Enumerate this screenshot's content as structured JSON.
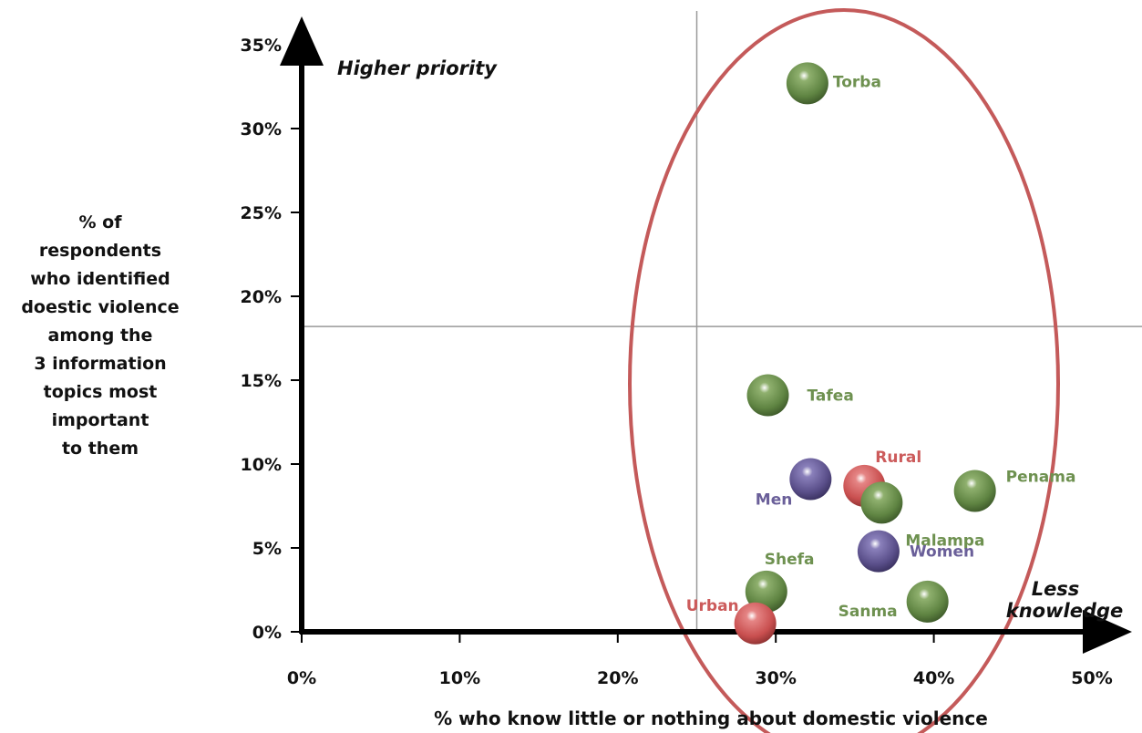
{
  "chart_data": {
    "type": "scatter",
    "title": "",
    "xlabel": "% who know little or nothing about domestic violence",
    "ylabel_lines": [
      "% of",
      "respondents",
      "who identified",
      "doestic violence",
      "among the",
      "3 information",
      "topics most",
      "important",
      "to them"
    ],
    "xlim": [
      0,
      50
    ],
    "ylim": [
      0,
      35
    ],
    "x_ticks": [
      0,
      10,
      20,
      30,
      40,
      50
    ],
    "y_ticks": [
      0,
      5,
      10,
      15,
      20,
      25,
      30,
      35
    ],
    "x_tick_labels": [
      "0%",
      "10%",
      "20%",
      "30%",
      "40%",
      "50%"
    ],
    "y_tick_labels": [
      "0%",
      "5%",
      "10%",
      "15%",
      "20%",
      "25%",
      "30%",
      "35%"
    ],
    "reference_lines": {
      "x": 25,
      "y": 18.2
    },
    "annotations": {
      "top_left": "Higher priority",
      "bottom_right_line1": "Less",
      "bottom_right_line2": "knowledge"
    },
    "colors": {
      "province": "#6e9150",
      "gender": "#6a5f99",
      "area": "#cc5b5b",
      "ellipse": "#c45a5a",
      "refline": "#999999"
    },
    "points": [
      {
        "label": "Torba",
        "x": 32.0,
        "y": 32.7,
        "group": "province"
      },
      {
        "label": "Tafea",
        "x": 29.5,
        "y": 14.1,
        "group": "province"
      },
      {
        "label": "Men",
        "x": 32.2,
        "y": 9.1,
        "group": "gender"
      },
      {
        "label": "Rural",
        "x": 35.6,
        "y": 8.7,
        "group": "area"
      },
      {
        "label": "Malampa",
        "x": 36.7,
        "y": 7.7,
        "group": "province"
      },
      {
        "label": "Penama",
        "x": 42.6,
        "y": 8.4,
        "group": "province"
      },
      {
        "label": "Women",
        "x": 36.5,
        "y": 4.8,
        "group": "gender"
      },
      {
        "label": "Shefa",
        "x": 29.4,
        "y": 2.4,
        "group": "province"
      },
      {
        "label": "Sanma",
        "x": 39.6,
        "y": 1.8,
        "group": "province"
      },
      {
        "label": "Urban",
        "x": 28.7,
        "y": 0.5,
        "group": "area"
      }
    ]
  }
}
